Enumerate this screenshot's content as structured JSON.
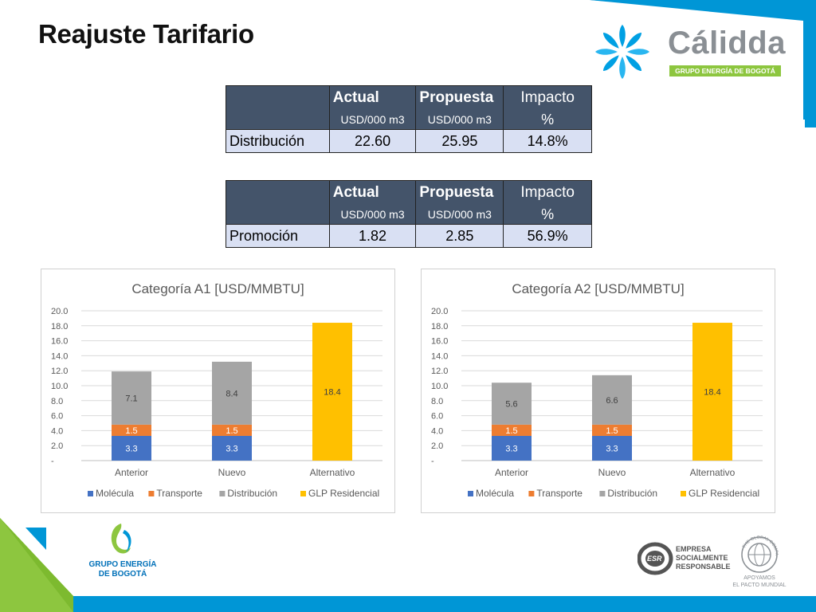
{
  "slide": {
    "title": "Reajuste Tarifario"
  },
  "brand": {
    "calidda_name": "Cálidda",
    "calidda_sub": "GRUPO ENERGÍA DE BOGOTÁ",
    "geb_line1": "GRUPO ENERGÍA",
    "geb_line2": "DE BOGOTÁ",
    "esr_line1": "EMPRESA",
    "esr_line2": "SOCIALMENTE",
    "esr_line3": "RESPONSABLE",
    "esr_badge": "ESR",
    "gc_ring": "THE GLOBAL COMPACT",
    "gc_line1": "APOYAMOS",
    "gc_line2": "EL PACTO MUNDIAL"
  },
  "colors": {
    "blue_accent": "#0096d6",
    "green_accent": "#8dc63f",
    "header_bg": "#44546a",
    "row_bg": "#d9e0f3",
    "molecula": "#4472c4",
    "transporte": "#ed7d31",
    "distribucion": "#a5a5a5",
    "glp": "#ffc000"
  },
  "tables": [
    {
      "headers": [
        "Actual",
        "Propuesta",
        "Impacto"
      ],
      "units": [
        "USD/000 m3",
        "USD/000 m3",
        "%"
      ],
      "row_label": "Distribución",
      "values": [
        "22.60",
        "25.95",
        "14.8%"
      ]
    },
    {
      "headers": [
        "Actual",
        "Propuesta",
        "Impacto"
      ],
      "units": [
        "USD/000 m3",
        "USD/000 m3",
        "%"
      ],
      "row_label": "Promoción",
      "values": [
        "1.82",
        "2.85",
        "56.9%"
      ]
    }
  ],
  "chart_data": [
    {
      "type": "bar",
      "stacked": true,
      "title": "Categoría A1 [USD/MMBTU]",
      "categories": [
        "Anterior",
        "Nuevo",
        "Alternativo"
      ],
      "series": [
        {
          "name": "Molécula",
          "values": [
            3.3,
            3.3,
            null
          ],
          "labels": [
            "3.3",
            "3.3",
            ""
          ]
        },
        {
          "name": "Transporte",
          "values": [
            1.5,
            1.5,
            null
          ],
          "labels": [
            "1.5",
            "1.5",
            ""
          ]
        },
        {
          "name": "Distribución",
          "values": [
            7.1,
            8.4,
            null
          ],
          "labels": [
            "7.1",
            "8.4",
            ""
          ]
        },
        {
          "name": "GLP Residencial",
          "values": [
            null,
            null,
            18.4
          ],
          "labels": [
            "",
            "",
            "18.4"
          ]
        }
      ],
      "yticks": [
        "-",
        "2.0",
        "4.0",
        "6.0",
        "8.0",
        "10.0",
        "12.0",
        "14.0",
        "16.0",
        "18.0",
        "20.0"
      ],
      "ylim": [
        0,
        20
      ],
      "grid": true,
      "legend": "bottom"
    },
    {
      "type": "bar",
      "stacked": true,
      "title": "Categoría A2 [USD/MMBTU]",
      "categories": [
        "Anterior",
        "Nuevo",
        "Alternativo"
      ],
      "series": [
        {
          "name": "Molécula",
          "values": [
            3.3,
            3.3,
            null
          ],
          "labels": [
            "3.3",
            "3.3",
            ""
          ]
        },
        {
          "name": "Transporte",
          "values": [
            1.5,
            1.5,
            null
          ],
          "labels": [
            "1.5",
            "1.5",
            ""
          ]
        },
        {
          "name": "Distribución",
          "values": [
            5.6,
            6.6,
            null
          ],
          "labels": [
            "5.6",
            "6.6",
            ""
          ]
        },
        {
          "name": "GLP Residencial",
          "values": [
            null,
            null,
            18.4
          ],
          "labels": [
            "",
            "",
            "18.4"
          ]
        }
      ],
      "yticks": [
        "-",
        "2.0",
        "4.0",
        "6.0",
        "8.0",
        "10.0",
        "12.0",
        "14.0",
        "16.0",
        "18.0",
        "20.0"
      ],
      "ylim": [
        0,
        20
      ],
      "grid": true,
      "legend": "bottom"
    }
  ]
}
